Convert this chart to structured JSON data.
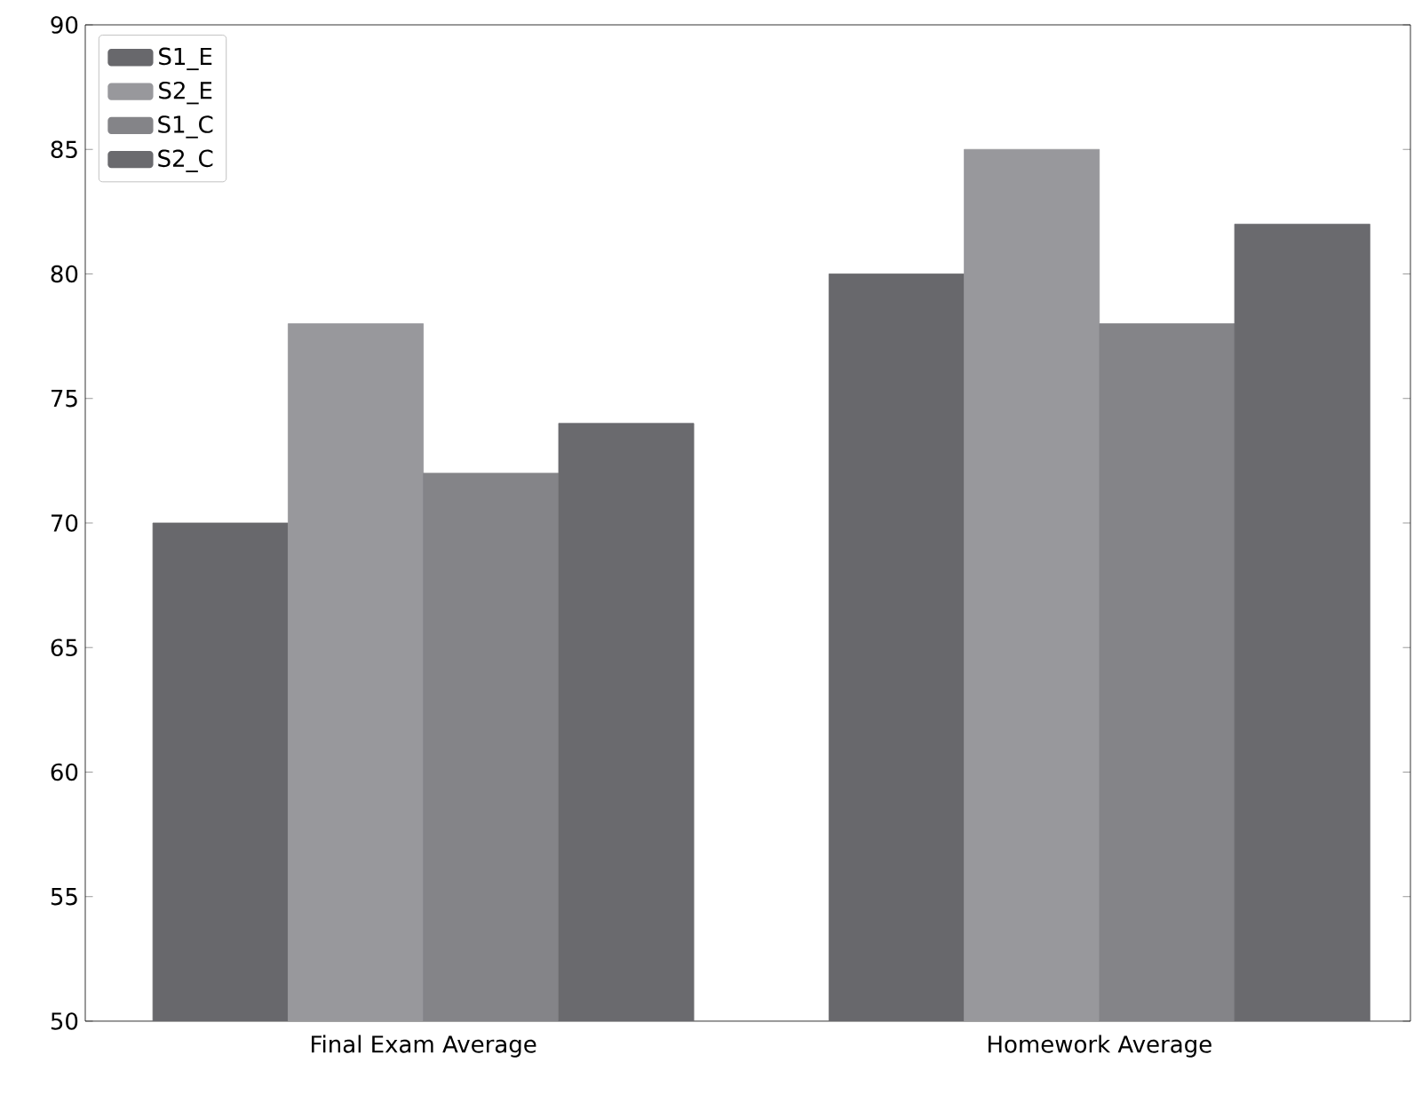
{
  "chart_data": {
    "type": "bar",
    "categories": [
      "Final Exam Average",
      "Homework Average"
    ],
    "series": [
      {
        "name": "S1_E",
        "color": "#68686c",
        "values": [
          70,
          80
        ]
      },
      {
        "name": "S2_E",
        "color": "#98989c",
        "values": [
          78,
          85
        ]
      },
      {
        "name": "S1_C",
        "color": "#848488",
        "values": [
          72,
          78
        ]
      },
      {
        "name": "S2_C",
        "color": "#6a6a6e",
        "values": [
          74,
          82
        ]
      }
    ],
    "ylim": [
      50,
      90
    ],
    "yticks": [
      50,
      55,
      60,
      65,
      70,
      75,
      80,
      85,
      90
    ],
    "grid": false,
    "legend": "top left"
  }
}
